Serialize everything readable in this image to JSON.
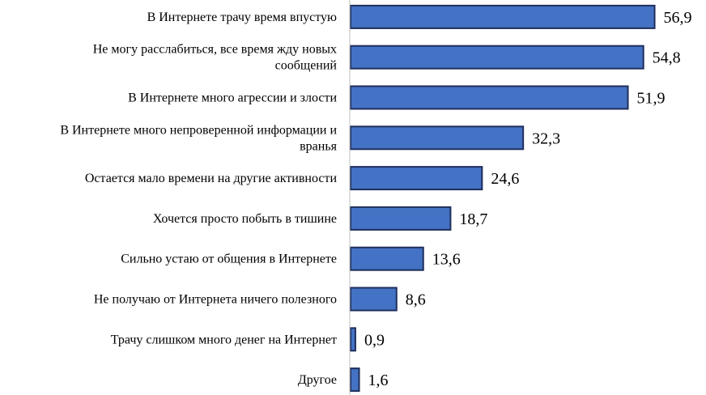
{
  "chart_data": {
    "type": "bar",
    "orientation": "horizontal",
    "categories": [
      [
        "В Интернете трачу время впустую"
      ],
      [
        "Не могу расслабиться, все время жду новых",
        "сообщений"
      ],
      [
        "В Интернете много агрессии и злости"
      ],
      [
        "В Интернете много непроверенной информации и",
        "вранья"
      ],
      [
        "Остается мало времени на другие активности"
      ],
      [
        "Хочется просто побыть в тишине"
      ],
      [
        "Сильно устаю от общения в Интернете"
      ],
      [
        "Не получаю от Интернета ничего полезного"
      ],
      [
        "Трачу слишком много денег на Интернет"
      ],
      [
        "Другое"
      ]
    ],
    "values": [
      56.9,
      54.8,
      51.9,
      32.3,
      24.6,
      18.7,
      13.6,
      8.6,
      0.9,
      1.6
    ],
    "value_labels": [
      "56,9",
      "54,8",
      "51,9",
      "32,3",
      "24,6",
      "18,7",
      "13,6",
      "8,6",
      "0,9",
      "1,6"
    ],
    "xlim": [
      0,
      60
    ],
    "grid": false,
    "legend": "none",
    "bar_color": "#4472C4",
    "bar_edge_color": "#1F2F5C"
  }
}
